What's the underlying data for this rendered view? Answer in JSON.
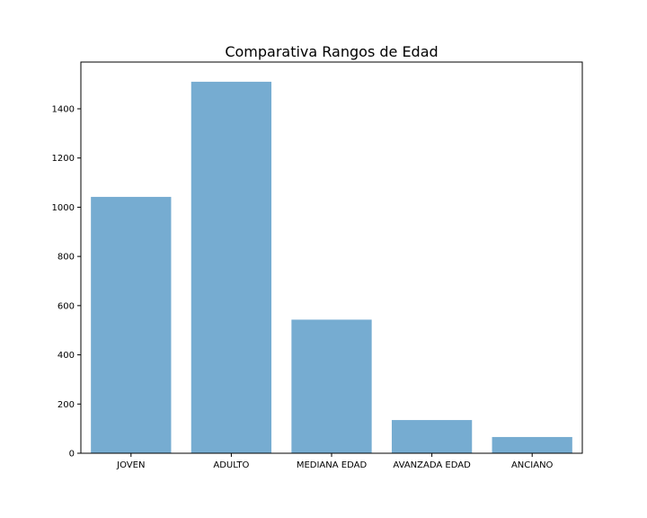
{
  "chart_data": {
    "type": "bar",
    "title": "Comparativa Rangos de Edad",
    "xlabel": "",
    "ylabel": "",
    "categories": [
      "JOVEN",
      "ADULTO",
      "MEDIANA EDAD",
      "AVANZADA EDAD",
      "ANCIANO"
    ],
    "values": [
      1042,
      1510,
      543,
      135,
      66
    ],
    "ylim": [
      0,
      1590
    ],
    "yticks": [
      0,
      200,
      400,
      600,
      800,
      1000,
      1200,
      1400
    ],
    "ytick_labels": [
      "0",
      "200",
      "400",
      "600",
      "800",
      "1000",
      "1200",
      "1400"
    ],
    "grid": false,
    "legend": "none",
    "bar_color": "#76acd1"
  }
}
